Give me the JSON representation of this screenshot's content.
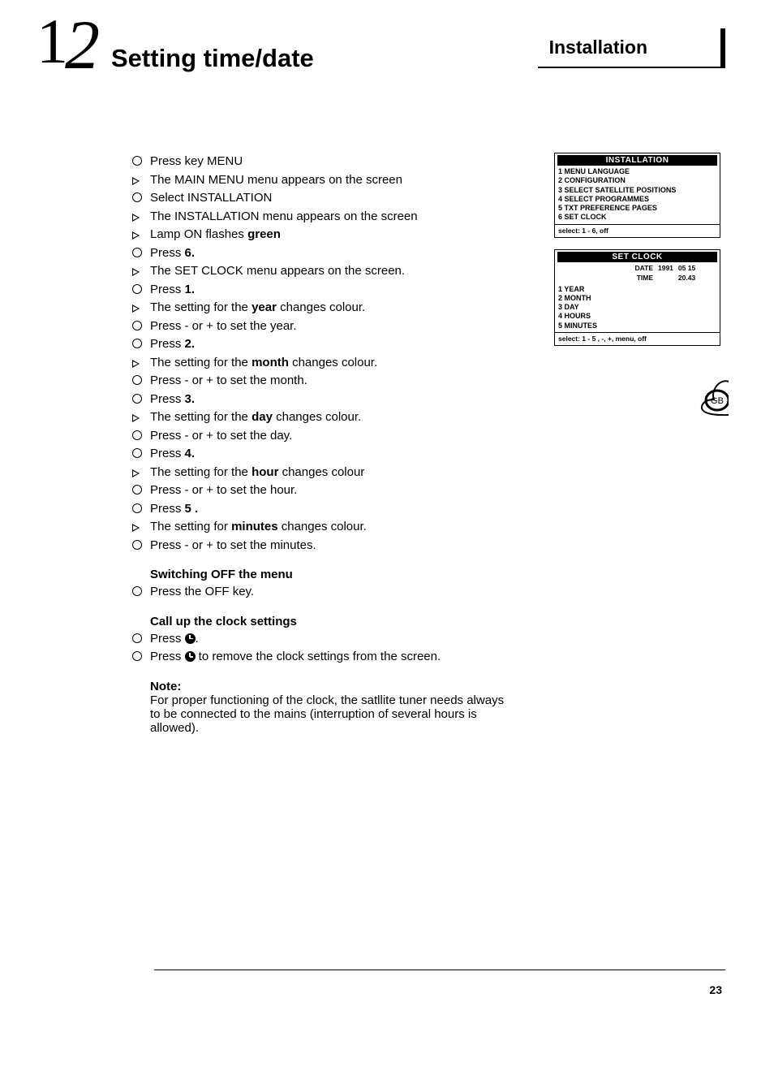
{
  "header": {
    "page_number_glyph_1": "1",
    "page_number_glyph_2": "2",
    "title": "Setting time/date",
    "section_box": "Installation"
  },
  "steps": [
    {
      "marker": "circ",
      "html": "Press key MENU"
    },
    {
      "marker": "tri",
      "html": "The MAIN MENU menu appears on the screen"
    },
    {
      "marker": "circ",
      "html": "Select INSTALLATION"
    },
    {
      "marker": "tri",
      "html": "The INSTALLATION menu appears on the screen"
    },
    {
      "marker": "tri",
      "html": "Lamp ON flashes <b>green</b>"
    },
    {
      "marker": "circ",
      "html": "Press <b>6.</b>"
    },
    {
      "marker": "tri",
      "html": "The SET CLOCK menu appears on the screen."
    },
    {
      "marker": "circ",
      "html": "Press <b>1.</b>"
    },
    {
      "marker": "tri",
      "html": "The setting for the <b>year</b> changes colour."
    },
    {
      "marker": "circ",
      "html": "Press - or + to set the year."
    },
    {
      "marker": "circ",
      "html": "Press <b>2.</b>"
    },
    {
      "marker": "tri",
      "html": "The setting for the <b>month</b> changes colour."
    },
    {
      "marker": "circ",
      "html": "Press - or + to set the month."
    },
    {
      "marker": "circ",
      "html": "Press <b>3.</b>"
    },
    {
      "marker": "tri",
      "html": "The setting for the <b>day</b> changes colour."
    },
    {
      "marker": "circ",
      "html": "Press - or + to set the day."
    },
    {
      "marker": "circ",
      "html": "Press <b>4.</b>"
    },
    {
      "marker": "tri",
      "html": "The setting for the <b>hour</b> changes colour"
    },
    {
      "marker": "circ",
      "html": "Press - or + to set the hour."
    },
    {
      "marker": "circ",
      "html": "Press <b>5 .</b>"
    },
    {
      "marker": "tri",
      "html": "The setting for <b>minutes</b> changes colour."
    },
    {
      "marker": "circ",
      "html": "Press - or + to set the minutes."
    }
  ],
  "switch_off": {
    "title": "Switching OFF the menu",
    "items": [
      {
        "marker": "circ",
        "html": "Press the OFF key."
      }
    ]
  },
  "call_up": {
    "title": "Call up the clock settings",
    "items": [
      {
        "marker": "circ",
        "html": "Press <span class=\"clock-icon\" data-name=\"clock-icon\" data-interactable=\"false\"></span>."
      },
      {
        "marker": "circ",
        "html": "Press <span class=\"clock-icon\" data-name=\"clock-icon\" data-interactable=\"false\"></span> to remove the clock settings from the screen."
      }
    ]
  },
  "note": {
    "title": "Note:",
    "body": "For proper functioning of the clock, the satllite tuner needs always to be connected to the mains (interruption of several hours is allowed)."
  },
  "screen_installation": {
    "title": "INSTALLATION",
    "lines": [
      "1 MENU LANGUAGE",
      "2 CONFIGURATION",
      "3 SELECT SATELLITE POSITIONS",
      "4 SELECT PROGRAMMES",
      "5 TXT PREFERENCE PAGES",
      "6 SET CLOCK"
    ],
    "footer": "select: 1 - 6, off"
  },
  "screen_setclock": {
    "title": "SET CLOCK",
    "date_label": "DATE",
    "date_value": [
      "1991",
      "05 15"
    ],
    "time_label": "TIME",
    "time_value": "20.43",
    "lines": [
      "1 YEAR",
      "2 MONTH",
      "3 DAY",
      "4 HOURS",
      "5 MINUTES"
    ],
    "footer": "select: 1 - 5 , -, +, menu, off"
  },
  "side_tab": "GB",
  "page_number": "23"
}
